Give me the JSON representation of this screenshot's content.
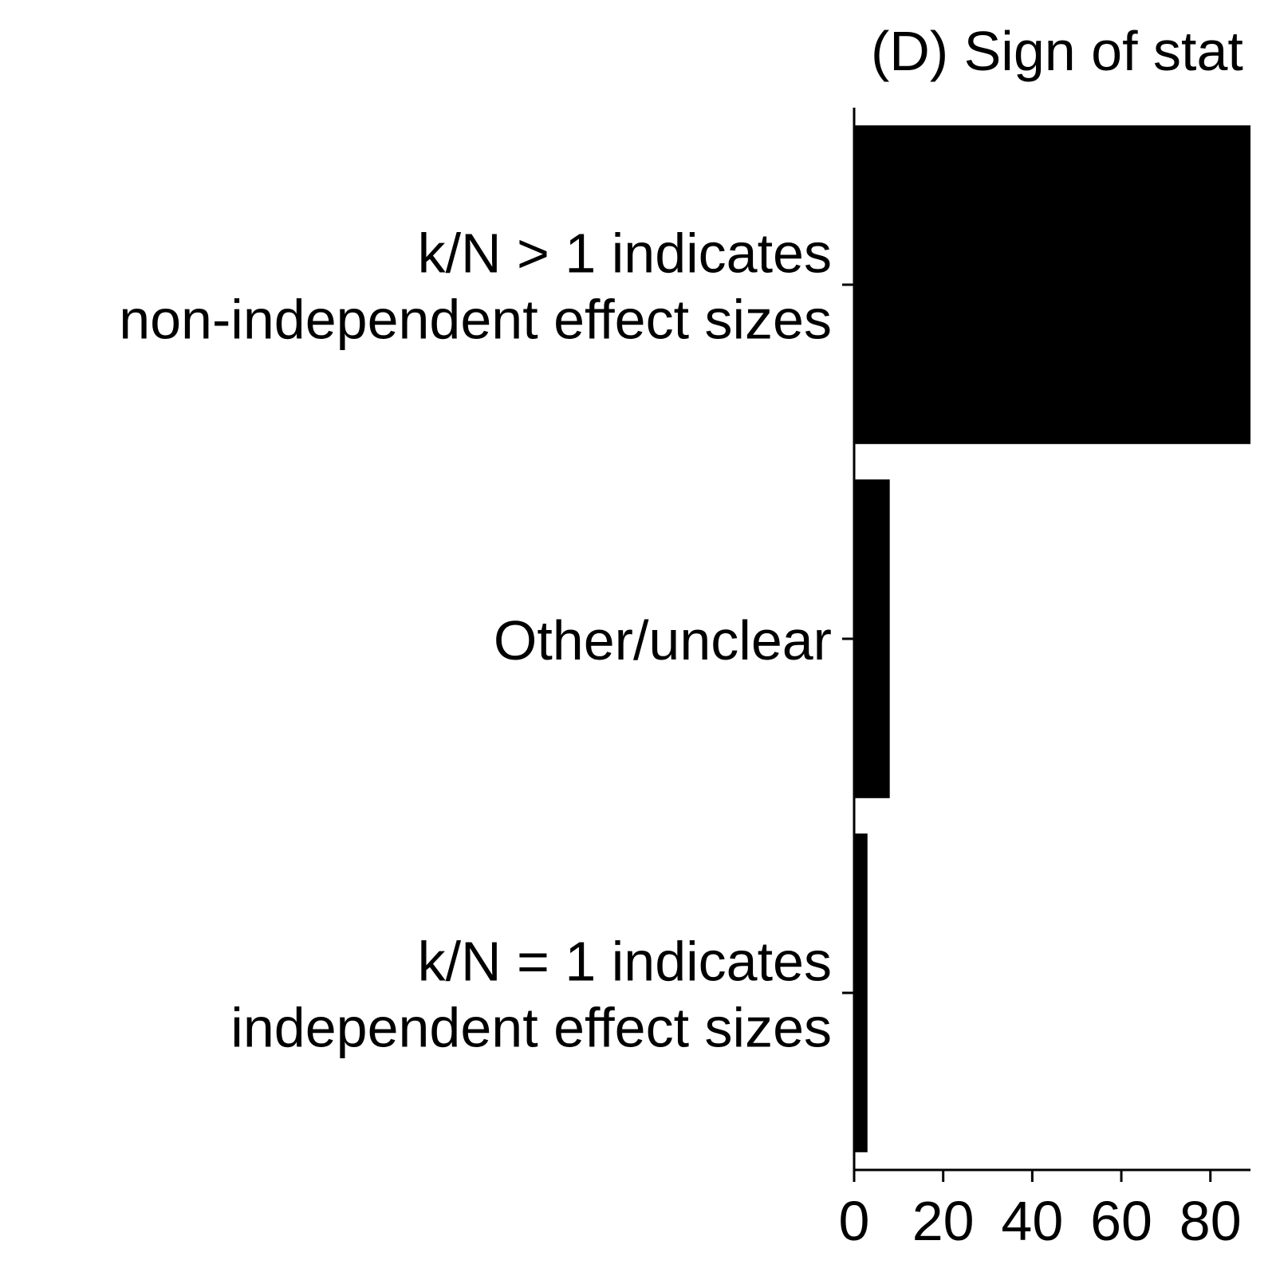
{
  "chart_data": {
    "type": "bar",
    "orientation": "horizontal",
    "title": "(D) Sign of stat",
    "categories": [
      [
        "k/N > 1 indicates",
        "non-independent effect sizes"
      ],
      [
        "Other/unclear"
      ],
      [
        "k/N = 1 indicates",
        "independent effect sizes"
      ]
    ],
    "values": [
      89,
      8,
      3
    ],
    "xlim": [
      0,
      89
    ],
    "xticks": [
      0,
      20,
      40,
      60,
      80
    ],
    "xlabel": "",
    "ylabel": "",
    "grid": false,
    "legend": "none",
    "bar_color": "#000000"
  }
}
